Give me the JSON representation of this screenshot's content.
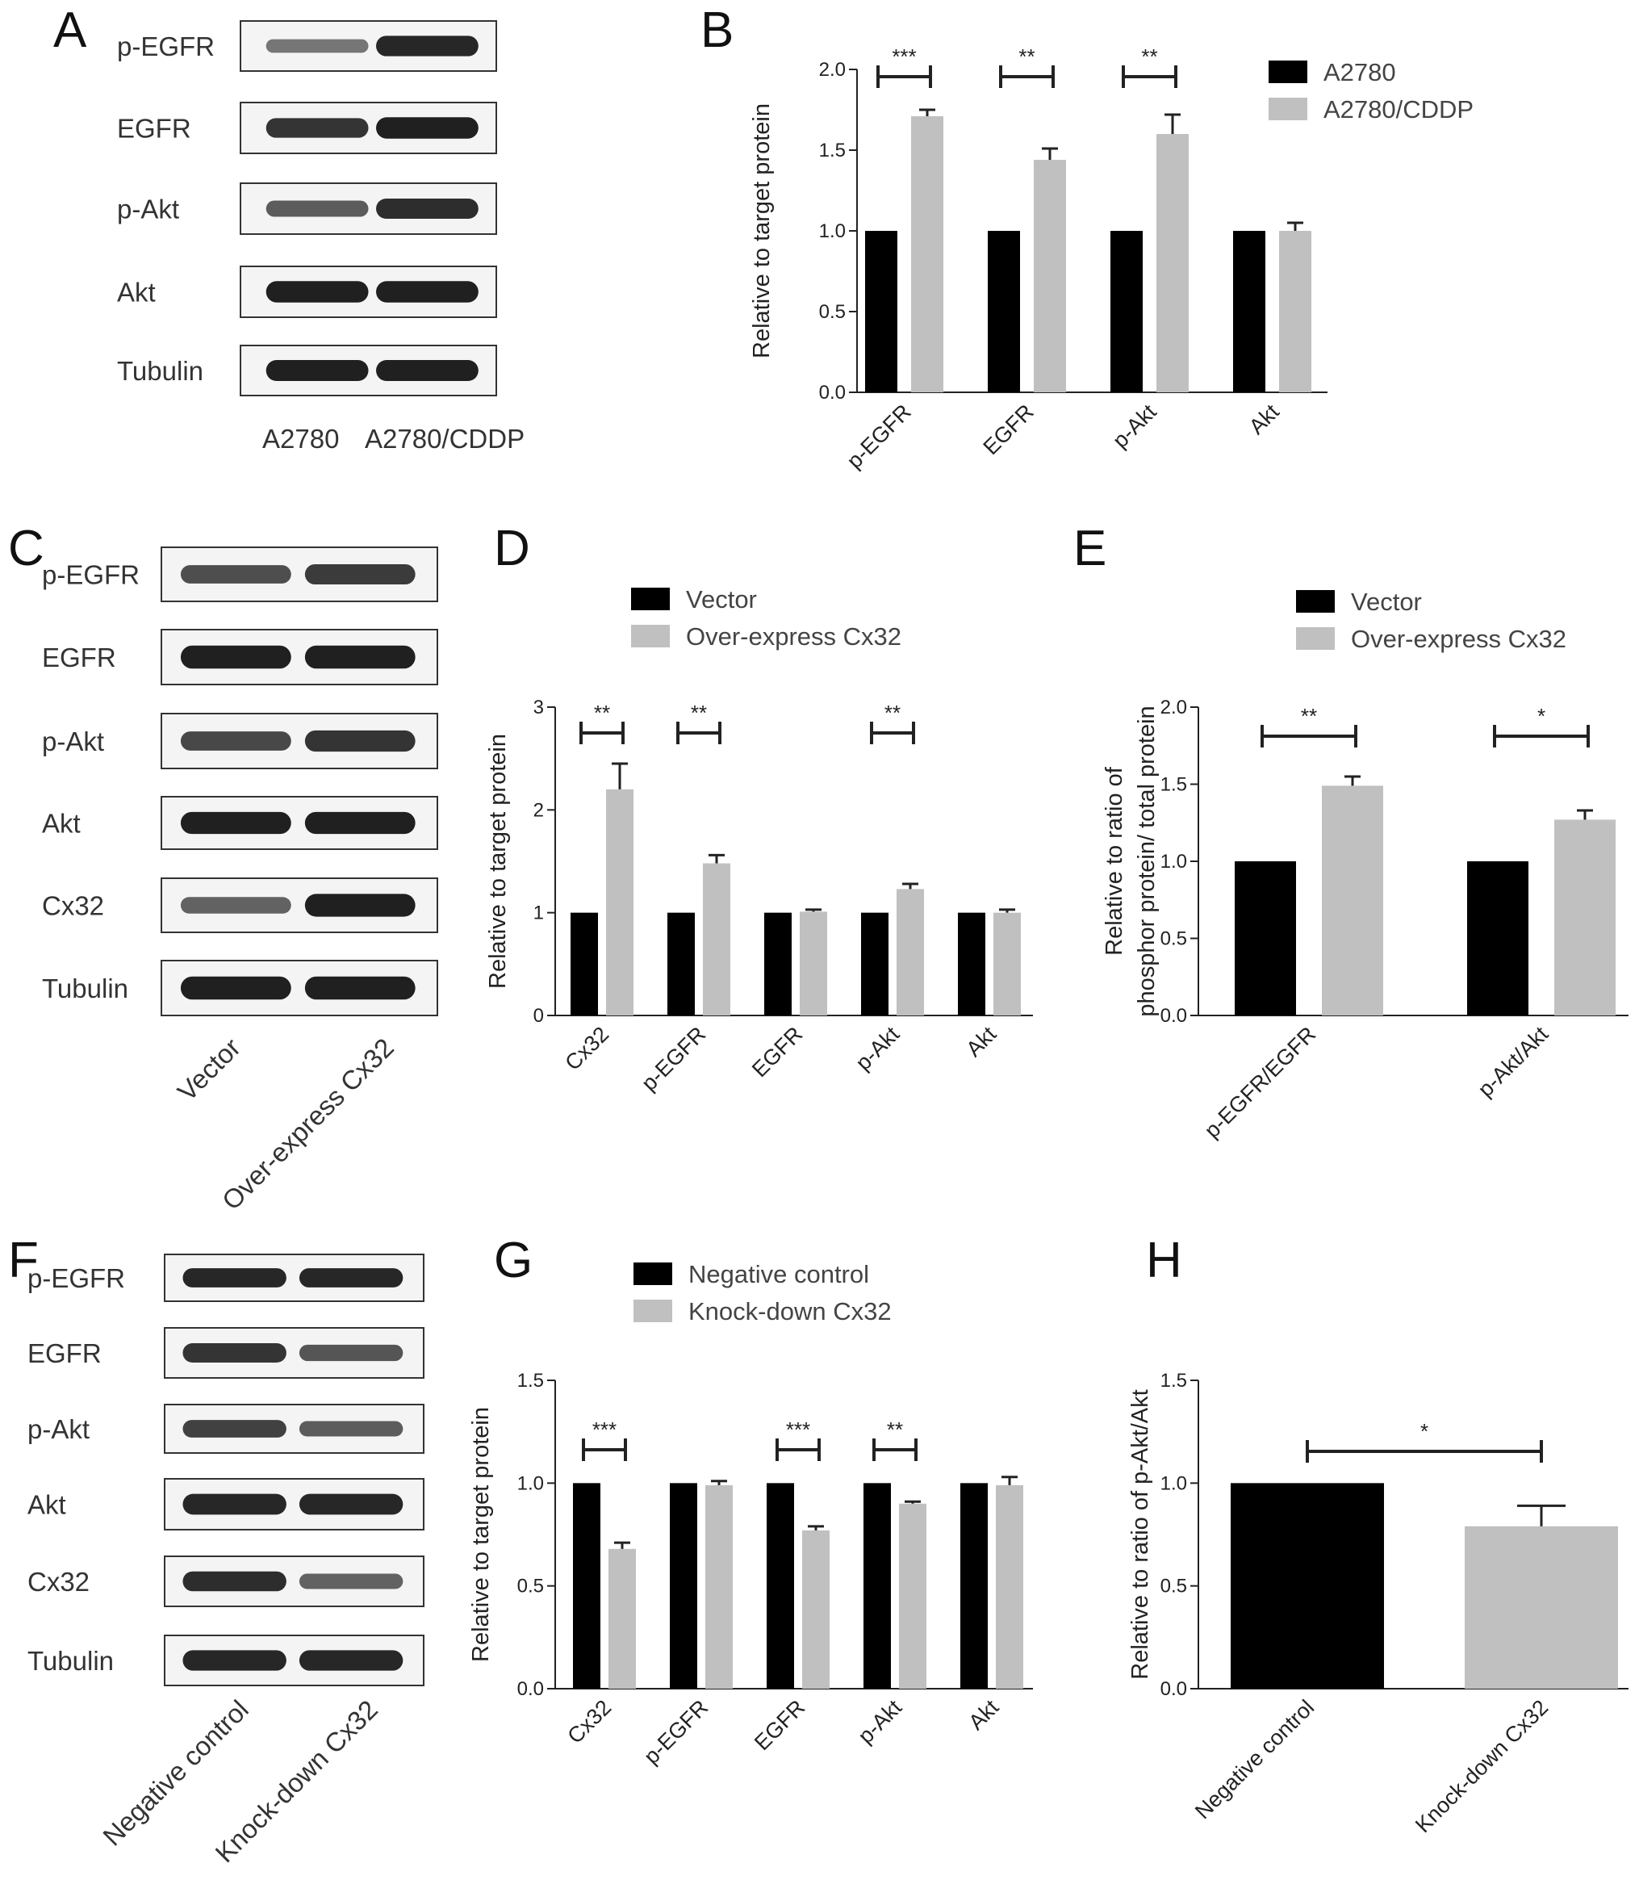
{
  "colors": {
    "group1": "#000000",
    "group2": "#c0c0c0"
  },
  "panels": {
    "A": {
      "letter": "A"
    },
    "B": {
      "letter": "B"
    },
    "C": {
      "letter": "C"
    },
    "D": {
      "letter": "D"
    },
    "E": {
      "letter": "E"
    },
    "F": {
      "letter": "F"
    },
    "G": {
      "letter": "G"
    },
    "H": {
      "letter": "H"
    }
  },
  "blots": {
    "A": {
      "rows": [
        "p-EGFR",
        "EGFR",
        "p-Akt",
        "Akt",
        "Tubulin"
      ],
      "lanes": [
        "A2780",
        "A2780/CDDP"
      ]
    },
    "C": {
      "rows": [
        "p-EGFR",
        "EGFR",
        "p-Akt",
        "Akt",
        "Cx32",
        "Tubulin"
      ],
      "lanes": [
        "Vector",
        "Over-express Cx32"
      ]
    },
    "F": {
      "rows": [
        "p-EGFR",
        "EGFR",
        "p-Akt",
        "Akt",
        "Cx32",
        "Tubulin"
      ],
      "lanes": [
        "Negative control",
        "Knock-down Cx32"
      ]
    }
  },
  "chart_data": [
    {
      "panel": "B",
      "type": "bar",
      "ylabel": "Relative to target protein",
      "ylim": [
        0,
        2.0
      ],
      "yticks": [
        "0.0",
        "0.5",
        "1.0",
        "1.5",
        "2.0"
      ],
      "categories": [
        "p-EGFR",
        "EGFR",
        "p-Akt",
        "Akt"
      ],
      "legend": "top-right",
      "series": [
        {
          "name": "A2780",
          "values": [
            1.0,
            1.0,
            1.0,
            1.0
          ],
          "errors": [
            0,
            0,
            0,
            0
          ]
        },
        {
          "name": "A2780/CDDP",
          "values": [
            1.71,
            1.44,
            1.6,
            1.0
          ],
          "errors": [
            0.04,
            0.07,
            0.12,
            0.05
          ]
        }
      ],
      "significance": [
        "***",
        "**",
        "**",
        ""
      ]
    },
    {
      "panel": "D",
      "type": "bar",
      "ylabel": "Relative to target protein",
      "ylim": [
        0,
        3
      ],
      "yticks": [
        "0",
        "1",
        "2",
        "3"
      ],
      "categories": [
        "Cx32",
        "p-EGFR",
        "EGFR",
        "p-Akt",
        "Akt"
      ],
      "legend": "top-left",
      "series": [
        {
          "name": "Vector",
          "values": [
            1.0,
            1.0,
            1.0,
            1.0,
            1.0
          ],
          "errors": [
            0,
            0,
            0,
            0,
            0
          ]
        },
        {
          "name": "Over-express Cx32",
          "values": [
            2.2,
            1.48,
            1.01,
            1.23,
            1.0
          ],
          "errors": [
            0.25,
            0.08,
            0.02,
            0.05,
            0.03
          ]
        }
      ],
      "significance": [
        "**",
        "**",
        "",
        "**",
        ""
      ]
    },
    {
      "panel": "E",
      "type": "bar",
      "ylabel_lines": [
        "Relative to ratio of",
        "phosphor protein/ total protein"
      ],
      "ylim": [
        0,
        2.0
      ],
      "yticks": [
        "0.0",
        "0.5",
        "1.0",
        "1.5",
        "2.0"
      ],
      "categories": [
        "p-EGFR/EGFR",
        "p-Akt/Akt"
      ],
      "legend": "top-left",
      "series": [
        {
          "name": "Vector",
          "values": [
            1.0,
            1.0
          ],
          "errors": [
            0,
            0
          ]
        },
        {
          "name": "Over-express Cx32",
          "values": [
            1.49,
            1.27
          ],
          "errors": [
            0.06,
            0.06
          ]
        }
      ],
      "significance": [
        "**",
        "*"
      ]
    },
    {
      "panel": "G",
      "type": "bar",
      "ylabel": "Relative to target protein",
      "ylim": [
        0,
        1.5
      ],
      "yticks": [
        "0.0",
        "0.5",
        "1.0",
        "1.5"
      ],
      "categories": [
        "Cx32",
        "p-EGFR",
        "EGFR",
        "p-Akt",
        "Akt"
      ],
      "legend": "top-left",
      "series": [
        {
          "name": "Negative control",
          "values": [
            1.0,
            1.0,
            1.0,
            1.0,
            1.0
          ],
          "errors": [
            0,
            0,
            0,
            0,
            0
          ]
        },
        {
          "name": "Knock-down Cx32",
          "values": [
            0.68,
            0.99,
            0.77,
            0.9,
            0.99
          ],
          "errors": [
            0.03,
            0.02,
            0.02,
            0.01,
            0.04
          ]
        }
      ],
      "significance": [
        "***",
        "",
        "***",
        "**",
        ""
      ]
    },
    {
      "panel": "H",
      "type": "bar",
      "ylabel": "Relative to ratio of p-Akt/Akt",
      "ylim": [
        0,
        1.5
      ],
      "yticks": [
        "0.0",
        "0.5",
        "1.0",
        "1.5"
      ],
      "categories": [
        "Negative control",
        "Knock-down Cx32"
      ],
      "series": [
        {
          "values": [
            1.0,
            0.79
          ],
          "errors": [
            0,
            0.1
          ]
        }
      ],
      "significance": [
        "*"
      ]
    }
  ]
}
